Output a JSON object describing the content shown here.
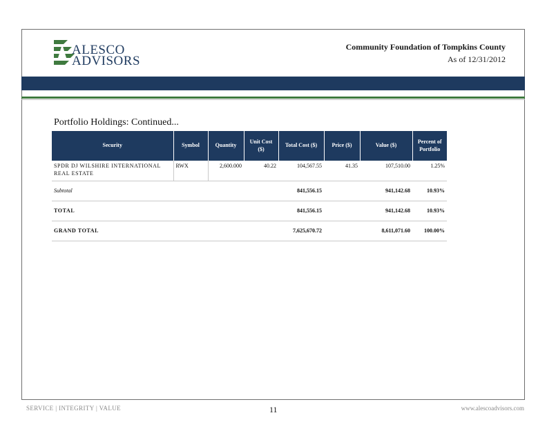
{
  "brand": {
    "line1": "ALESCO",
    "line2": "ADVISORS",
    "navy": "#1e3a5f",
    "green": "#3f7a3f"
  },
  "header": {
    "client_name": "Community Foundation of Tompkins County",
    "as_of": "As of 12/31/2012"
  },
  "section_title": "Portfolio Holdings: Continued...",
  "table": {
    "columns": [
      {
        "label": "Security"
      },
      {
        "label": "Symbol"
      },
      {
        "label": "Quantity"
      },
      {
        "label": "Unit Cost ($)"
      },
      {
        "label": "Total Cost ($)"
      },
      {
        "label": "Price ($)"
      },
      {
        "label": "Value ($)"
      },
      {
        "label": "Percent of Portfolio"
      }
    ],
    "security_row": {
      "security": "SPDR DJ WILSHIRE INTERNATIONAL REAL ESTATE",
      "symbol": "RWX",
      "quantity": "2,600.000",
      "unit_cost": "40.22",
      "total_cost": "104,567.55",
      "price": "41.35",
      "value": "107,510.00",
      "percent": "1.25%"
    },
    "subtotal_row": {
      "label": "Subtotal",
      "total_cost": "841,556.15",
      "value": "941,142.68",
      "percent": "10.93%"
    },
    "total_row": {
      "label": "TOTAL",
      "total_cost": "841,556.15",
      "value": "941,142.68",
      "percent": "10.93%"
    },
    "grand_total_row": {
      "label": "GRAND TOTAL",
      "total_cost": "7,625,670.72",
      "value": "8,611,071.60",
      "percent": "100.00%"
    }
  },
  "footer": {
    "motto": "SERVICE | INTEGRITY | VALUE",
    "page_number": "11",
    "url": "www.alescoadvisors.com"
  }
}
